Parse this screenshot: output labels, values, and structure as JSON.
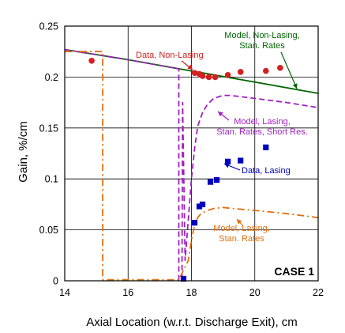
{
  "chart_data": {
    "type": "scatter",
    "title": "",
    "xlabel": "Axial Location (w.r.t. Discharge Exit), cm",
    "ylabel": "Gain, %/cm",
    "xlim": [
      14,
      22
    ],
    "ylim": [
      0,
      0.25
    ],
    "x_ticks": [
      "14",
      "16",
      "18",
      "20",
      "22"
    ],
    "y_ticks": [
      "0",
      "0.05",
      "0.1",
      "0.15",
      "0.2",
      "0.25"
    ],
    "grid": true,
    "legend": "none (series labelled by on-chart annotations)",
    "case_label": "CASE 1",
    "series": [
      {
        "label": "Data, Non-Lasing",
        "kind": "points",
        "marker": "circle",
        "color": "#d42020",
        "x": [
          14.85,
          18.1,
          18.25,
          18.35,
          18.55,
          18.75,
          19.15,
          19.55,
          20.35,
          20.8
        ],
        "y": [
          0.216,
          0.204,
          0.203,
          0.201,
          0.2,
          0.2,
          0.202,
          0.205,
          0.206,
          0.209
        ]
      },
      {
        "label": "Model, Non-Lasing,\nStan. Rates",
        "kind": "line",
        "dash": "solid",
        "color": "#006400",
        "x": [
          14,
          16,
          18,
          20,
          22
        ],
        "y": [
          0.227,
          0.217,
          0.206,
          0.195,
          0.184
        ]
      },
      {
        "label": "Data, Lasing",
        "kind": "points",
        "marker": "square",
        "color": "#0000c0",
        "x": [
          17.75,
          18.1,
          18.25,
          18.35,
          18.6,
          18.8,
          19.15,
          19.55,
          20.35
        ],
        "y": [
          0.002,
          0.057,
          0.073,
          0.075,
          0.097,
          0.099,
          0.117,
          0.118,
          0.131
        ]
      },
      {
        "label": "Model, Lasing,\nStan. Rates, Short Res.",
        "kind": "line",
        "dash": "dash",
        "color": "#a020c0",
        "x": [
          14,
          16,
          17.6,
          17.6,
          17.7,
          17.72,
          17.8,
          17.9,
          18.0,
          18.1,
          18.2,
          18.35,
          18.5,
          18.7,
          19.0,
          19.2,
          19.5,
          20.0,
          21.0,
          22.0
        ],
        "y": [
          0.227,
          0.217,
          0.208,
          0.001,
          0.001,
          0.175,
          0.02,
          0.06,
          0.1,
          0.13,
          0.152,
          0.165,
          0.173,
          0.179,
          0.182,
          0.182,
          0.181,
          0.179,
          0.175,
          0.17
        ]
      },
      {
        "label": "Model, Lasing,\nStan. Rates",
        "kind": "line",
        "dash": "dashdot",
        "color": "#e07010",
        "x": [
          14,
          15.2,
          15.2,
          17.6,
          17.9,
          18.0,
          18.1,
          18.2,
          18.3,
          18.5,
          18.7,
          19.0,
          19.3,
          20.0,
          21.0,
          22.0
        ],
        "y": [
          0.225,
          0.225,
          0.001,
          0.001,
          0.02,
          0.04,
          0.055,
          0.062,
          0.066,
          0.069,
          0.071,
          0.072,
          0.071,
          0.069,
          0.066,
          0.062
        ]
      }
    ],
    "annotations": [
      {
        "text": "Data, Non-Lasing",
        "color": "#d42020"
      },
      {
        "text": "Model, Non-Lasing,\nStan. Rates",
        "color": "#006400"
      },
      {
        "text": "Model, Lasing,\nStan. Rates, Short Res.",
        "color": "#a020c0"
      },
      {
        "text": "Data, Lasing",
        "color": "#0000c0"
      },
      {
        "text": "Model, Lasing,\nStan. Rates",
        "color": "#e07010"
      }
    ]
  }
}
